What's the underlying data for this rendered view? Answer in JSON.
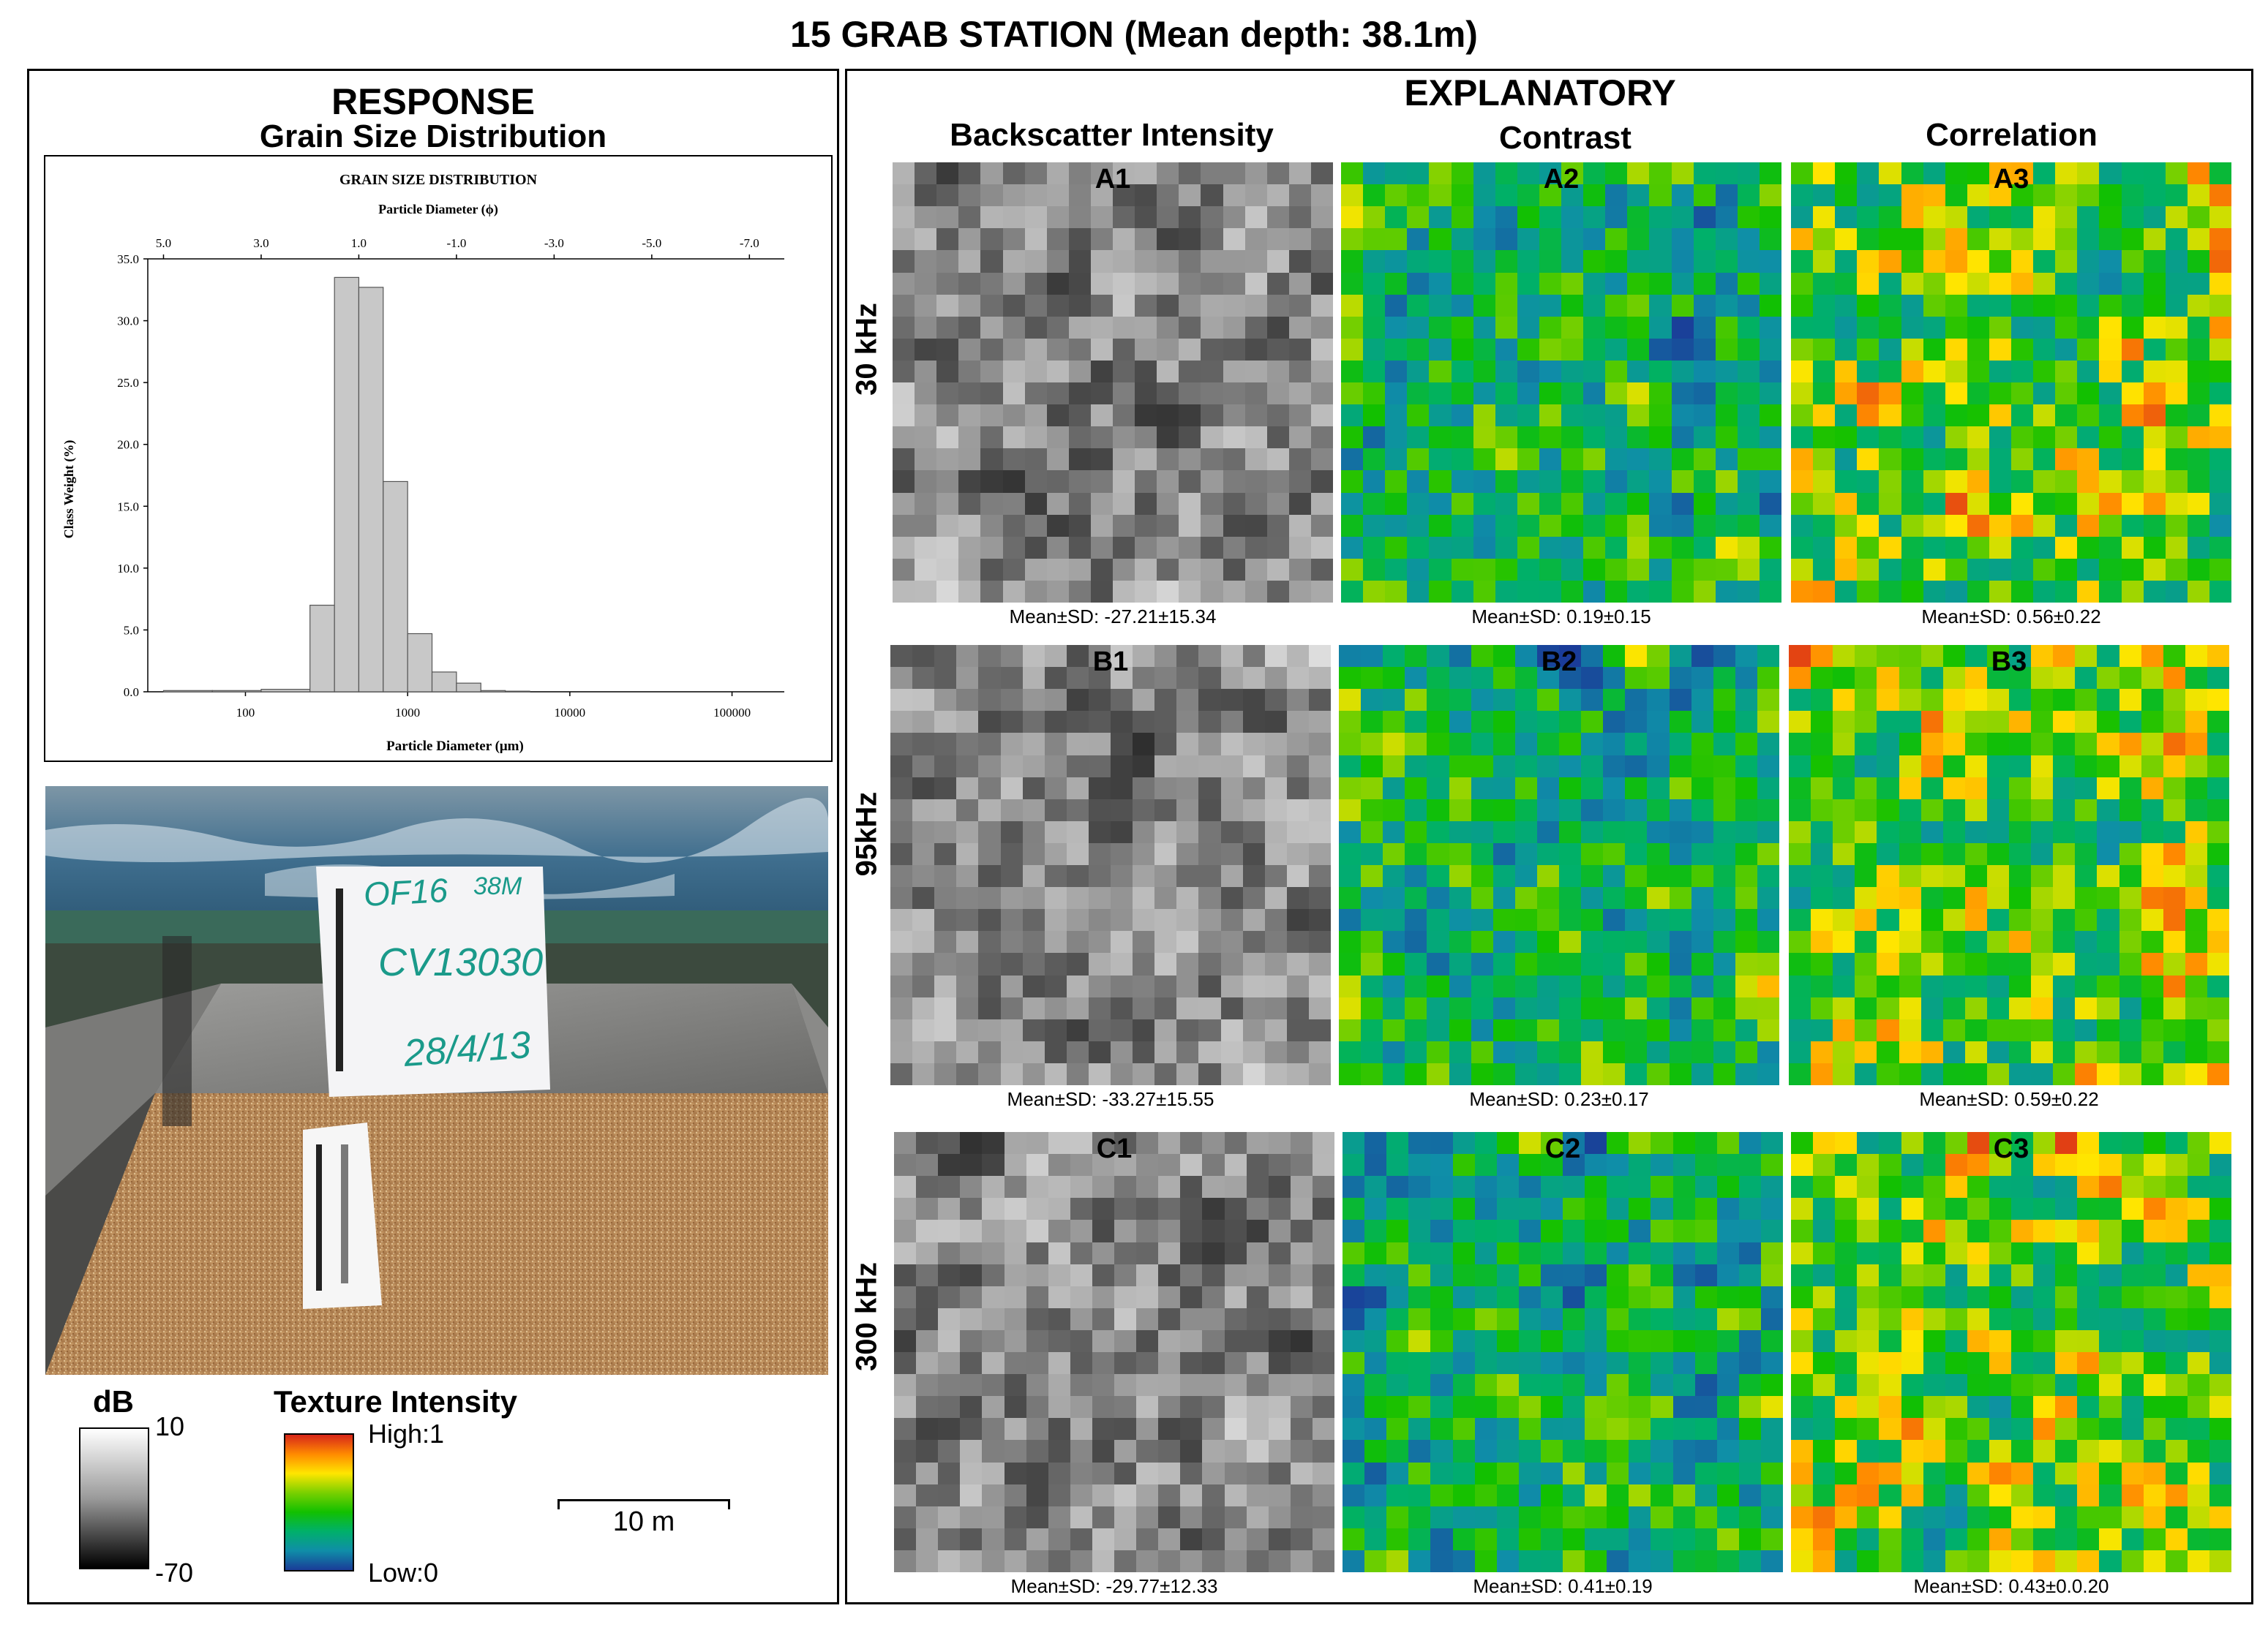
{
  "title": "15 GRAB STATION (Mean depth: 38.1m)",
  "response": {
    "heading": "RESPONSE",
    "subheading": "Grain Size Distribution"
  },
  "explanatory": {
    "heading": "EXPLANATORY",
    "columns": [
      "Backscatter Intensity",
      "Contrast",
      "Correlation"
    ],
    "rows": [
      "30 kHz",
      "95kHz",
      "300 kHz"
    ],
    "tiles": [
      {
        "label": "A1",
        "stat": "Mean±SD: -27.21±15.34",
        "kind": "gray",
        "seed": 11
      },
      {
        "label": "A2",
        "stat": "Mean±SD: 0.19±0.15",
        "kind": "contrast",
        "seed": 12
      },
      {
        "label": "A3",
        "stat": "Mean±SD: 0.56±0.22",
        "kind": "corr",
        "seed": 13
      },
      {
        "label": "B1",
        "stat": "Mean±SD: -33.27±15.55",
        "kind": "gray",
        "seed": 21
      },
      {
        "label": "B2",
        "stat": "Mean±SD:  0.23±0.17",
        "kind": "contrast",
        "seed": 22
      },
      {
        "label": "B3",
        "stat": "Mean±SD:  0.59±0.22",
        "kind": "corr",
        "seed": 23
      },
      {
        "label": "C1",
        "stat": "Mean±SD: -29.77±12.33",
        "kind": "gray",
        "seed": 31
      },
      {
        "label": "C2",
        "stat": "Mean±SD:  0.41±0.19",
        "kind": "contrast",
        "seed": 32
      },
      {
        "label": "C3",
        "stat": "Mean±SD:  0.43±0.0.20",
        "kind": "corr",
        "seed": 33
      }
    ]
  },
  "photo": {
    "board_line1": "OF16",
    "board_line2": "38M",
    "board_line3": "CV13030",
    "board_line4": "28/4/13"
  },
  "legend": {
    "db_title": "dB",
    "db_max": "10",
    "db_min": "-70",
    "texture_title": "Texture Intensity",
    "texture_high": "High:1",
    "texture_low": "Low:0",
    "scale_label": "10 m"
  },
  "colors": {
    "bar_fill": "#c8c8c8",
    "text_teal": "#1a9a8a"
  },
  "chart_data": {
    "type": "bar",
    "title": "GRAIN SIZE DISTRIBUTION",
    "top_axis_label": "Particle Diameter (ϕ)",
    "top_ticks": [
      "5.0",
      "3.0",
      "1.0",
      "-1.0",
      "-3.0",
      "-5.0",
      "-7.0"
    ],
    "xlabel": "Particle Diameter (μm)",
    "ylabel": "Class Weight (%)",
    "x_ticks": [
      "100",
      "1000",
      "10000",
      "100000"
    ],
    "y_ticks": [
      "0.0",
      "5.0",
      "10.0",
      "15.0",
      "20.0",
      "25.0",
      "30.0",
      "35.0"
    ],
    "ylim": [
      0,
      35
    ],
    "x_scale": "log",
    "bin_edges_um": [
      31.25,
      62.5,
      125,
      250,
      354,
      500,
      707,
      1000,
      1414,
      2000,
      2828,
      4000,
      5657,
      8000
    ],
    "values": [
      0.1,
      0.1,
      0.2,
      7.0,
      33.5,
      32.7,
      17.0,
      4.7,
      1.6,
      0.7,
      0.1,
      0.05,
      0.0
    ],
    "grid": false
  }
}
